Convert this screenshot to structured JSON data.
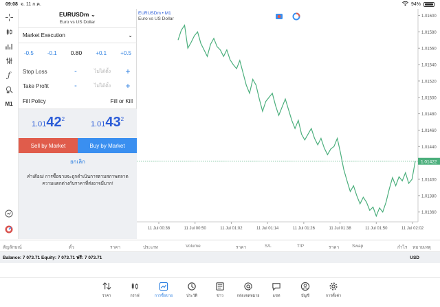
{
  "status": {
    "time": "09:08",
    "date": "จ. 11 ก.ค.",
    "battery": "94%",
    "battery_level": 0.94
  },
  "symbol": {
    "name": "EURUSDm",
    "description": "Euro vs US Dollar"
  },
  "order": {
    "execution": "Market Execution",
    "volume_steps": [
      "-0.5",
      "-0.1",
      "+0.1",
      "+0.5"
    ],
    "volume": "0.80",
    "stop_loss_label": "Stop Loss",
    "take_profit_label": "Take Profit",
    "not_set": "ไม่ได้ตั้ง",
    "minus": "-",
    "plus": "+",
    "fill_policy_label": "Fill Policy",
    "fill_policy_value": "Fill or Kill",
    "bid": {
      "small": "1.01",
      "big": "42",
      "sup": "2"
    },
    "ask": {
      "small": "1.01",
      "big": "43",
      "sup": "2"
    },
    "sell_label": "Sell by Market",
    "buy_label": "Buy by Market",
    "cancel_label": "ยกเลิก",
    "warning_line1": "คำเตือน! การซื้อขายจะถูกดำเนินการตามสภาพตลาด",
    "warning_line2": "ความแตกต่างกับราคาที่ส่งอาจมีมาก!"
  },
  "left_toolbar": {
    "timeframe": "M1",
    "icons": [
      "crosshair-icon",
      "candles-icon",
      "indicators-icon",
      "settings-icon",
      "function-icon",
      "objects-icon",
      "timeframe-label",
      "search-icon",
      "trade-icon"
    ]
  },
  "chart_data": {
    "type": "line",
    "title": "EURUSDm • M1",
    "subtitle": "Euro vs US Dollar",
    "x_tick_labels": [
      "11 Jul 00:38",
      "11 Jul 00:50",
      "11 Jul 01:02",
      "11 Jul 01:14",
      "11 Jul 01:26",
      "11 Jul 01:38",
      "11 Jul 01:50",
      "11 Jul 02:02"
    ],
    "y_tick_labels": [
      "1.01600",
      "1.01580",
      "1.01560",
      "1.01540",
      "1.01520",
      "1.01500",
      "1.01480",
      "1.01460",
      "1.01440",
      "1.01420",
      "1.01400",
      "1.01380",
      "1.01360"
    ],
    "ylim": [
      1.01348,
      1.01608
    ],
    "current_price": "1.01422",
    "current_price_value": 1.01422,
    "line_color": "#4caf7d",
    "series": [
      {
        "values": [
          1.0157,
          1.01582,
          1.01588,
          1.0156,
          1.01567,
          1.01575,
          1.0158,
          1.01566,
          1.01558,
          1.0155,
          1.01565,
          1.01572,
          1.01562,
          1.01558,
          1.0155,
          1.01558,
          1.01546,
          1.0154,
          1.01535,
          1.01545,
          1.0153,
          1.01515,
          1.01505,
          1.01522,
          1.01515,
          1.01498,
          1.01483,
          1.01495,
          1.015,
          1.01505,
          1.0149,
          1.01478,
          1.01488,
          1.01498,
          1.01485,
          1.01472,
          1.01462,
          1.01472,
          1.01455,
          1.01448,
          1.01455,
          1.01462,
          1.0145,
          1.01442,
          1.0145,
          1.01438,
          1.0143,
          1.01437,
          1.0144,
          1.0145,
          1.01432,
          1.01412,
          1.01398,
          1.01385,
          1.01392,
          1.0138,
          1.0137,
          1.01378,
          1.01372,
          1.01362,
          1.01366,
          1.01355,
          1.01365,
          1.0136,
          1.01372,
          1.01388,
          1.01402,
          1.01392,
          1.01403,
          1.01398,
          1.01408,
          1.01395,
          1.014,
          1.01422
        ]
      }
    ]
  },
  "table_header": [
    "สัญลักษณ์",
    "ตั๋ว",
    "ราคา",
    "ประเภท",
    "Volume",
    "ราคา",
    "S/L",
    "T/P",
    "ราคา",
    "Swap",
    "กำไร",
    "หมายเหตุ"
  ],
  "balance": {
    "text": "Balance: 7 073.71 Equity: 7 073.71 ฟรี: 7 073.71",
    "currency": "USD"
  },
  "tabs": [
    {
      "label": "ราคา",
      "icon": "quotes-icon"
    },
    {
      "label": "กราฟ",
      "icon": "charts-icon"
    },
    {
      "label": "การซื้อขาย",
      "icon": "trade-icon"
    },
    {
      "label": "ประวัติ",
      "icon": "history-icon"
    },
    {
      "label": "ข่าว",
      "icon": "news-icon"
    },
    {
      "label": "กล่องจดหมาย",
      "icon": "mailbox-icon"
    },
    {
      "label": "แชท",
      "icon": "chat-icon"
    },
    {
      "label": "บัญชี",
      "icon": "account-icon"
    },
    {
      "label": "การตั้งค่า",
      "icon": "settings-icon"
    }
  ]
}
